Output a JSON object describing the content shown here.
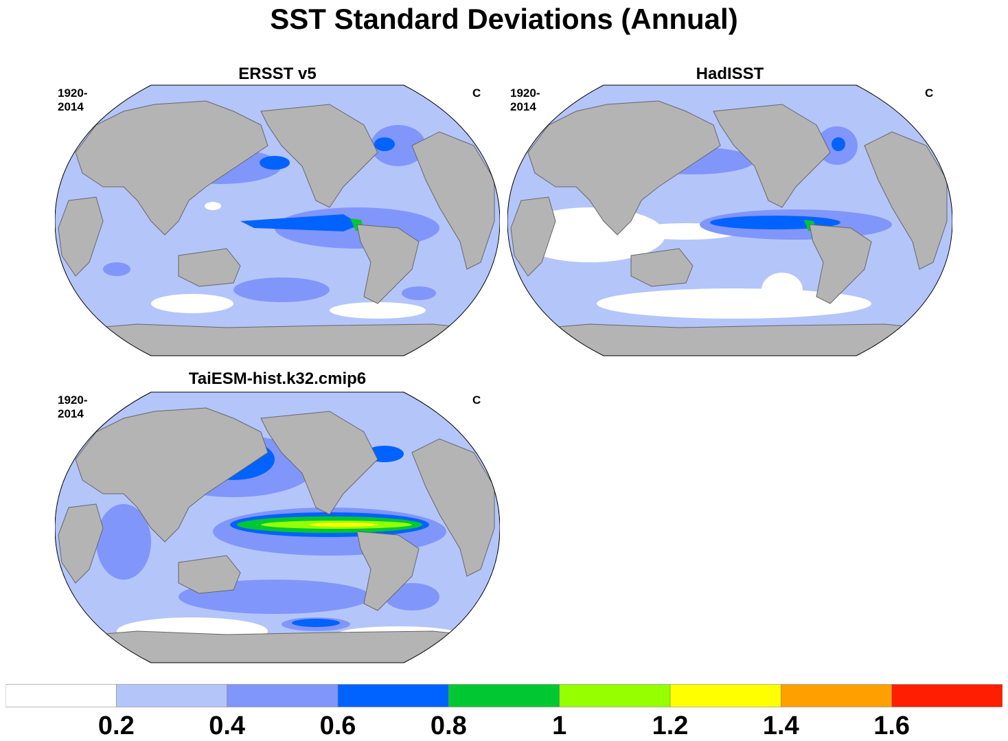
{
  "figure": {
    "title": "SST Standard Deviations (Annual)"
  },
  "panels": [
    {
      "title": "ERSST v5",
      "period": "1920-2014",
      "units": "C"
    },
    {
      "title": "HadISST",
      "period": "1920-2014",
      "units": "C"
    },
    {
      "title": "TaiESM-hist.k32.cmip6",
      "period": "1920-2014",
      "units": "C"
    }
  ],
  "colorbar": {
    "colors": [
      "#ffffff",
      "#b4c5fa",
      "#8096fa",
      "#0062ff",
      "#00c832",
      "#96ff00",
      "#ffff00",
      "#ffa000",
      "#ff1e00"
    ],
    "labels": [
      "0.2",
      "0.4",
      "0.6",
      "0.8",
      "1",
      "1.2",
      "1.4",
      "1.6"
    ]
  },
  "colors": {
    "land": "#b4b4b4",
    "ocean_base": "#b4c5fa"
  }
}
